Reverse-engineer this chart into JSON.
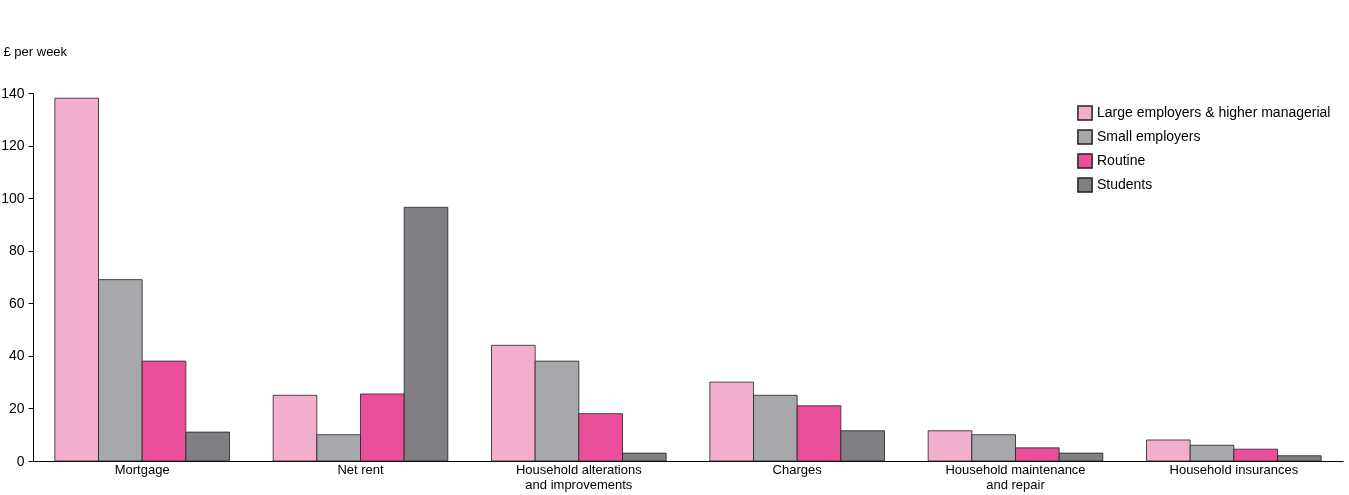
{
  "chart_data": {
    "type": "bar",
    "ylabel": "£ per week",
    "categories": [
      "Mortgage",
      "Net rent",
      "Household alterations\nand improvements",
      "Charges",
      "Household maintenance\nand repair",
      "Household insurances"
    ],
    "series": [
      {
        "name": "Large employers & higher managerial",
        "color": "#f4aecd",
        "values": [
          138,
          25,
          44,
          30,
          11.5,
          8
        ]
      },
      {
        "name": "Small employers",
        "color": "#a7a8ac",
        "values": [
          69,
          10,
          38,
          25,
          10,
          6
        ]
      },
      {
        "name": "Routine",
        "color": "#ec4f9a",
        "values": [
          38,
          25.5,
          18,
          21,
          5,
          4.5
        ]
      },
      {
        "name": "Students",
        "color": "#808084",
        "values": [
          11,
          96.5,
          3,
          11.5,
          3,
          2
        ]
      }
    ],
    "ylim": [
      0,
      140
    ],
    "yticks": [
      0,
      20,
      40,
      60,
      80,
      100,
      120,
      140
    ],
    "grid": false,
    "legend": "top right"
  }
}
